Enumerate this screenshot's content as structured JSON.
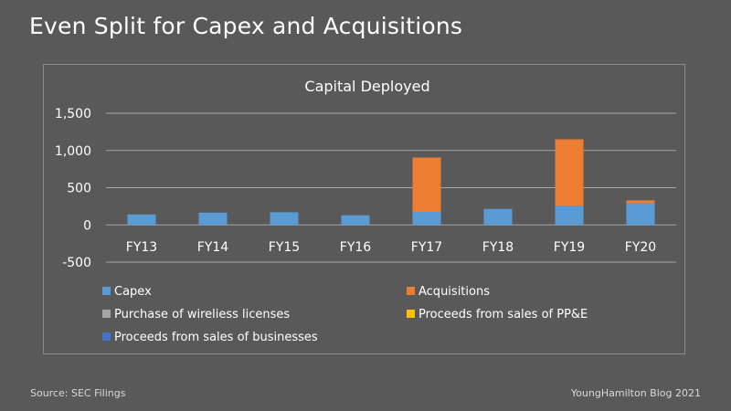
{
  "slide": {
    "title": "Even Split for Capex and Acquisitions",
    "source": "Source: SEC Filings",
    "credit": "YoungHamilton Blog 2021"
  },
  "colors": {
    "background": "#595959",
    "gridline": "#a6a6a6",
    "capex": "#5b9bd5",
    "acquisitions": "#ed7d31",
    "wireless": "#a5a5a5",
    "ppe": "#ffc000",
    "businesses": "#4472c4"
  },
  "chart_data": {
    "type": "bar",
    "stacked": true,
    "title": "Capital Deployed",
    "xlabel": "",
    "ylabel": "",
    "categories": [
      "FY13",
      "FY14",
      "FY15",
      "FY16",
      "FY17",
      "FY18",
      "FY19",
      "FY20"
    ],
    "ylim": [
      -500,
      1500
    ],
    "yticks": [
      -500,
      0,
      500,
      1000,
      1500
    ],
    "ytick_labels": [
      "-500",
      "0",
      "500",
      "1,000",
      "1,500"
    ],
    "grid": true,
    "legend_position": "bottom",
    "series": [
      {
        "name": "Capex",
        "color": "#5b9bd5",
        "values": [
          140,
          165,
          170,
          130,
          175,
          215,
          260,
          290
        ]
      },
      {
        "name": "Acquisitions",
        "color": "#ed7d31",
        "values": [
          0,
          0,
          0,
          0,
          730,
          0,
          890,
          40
        ]
      },
      {
        "name": "Purchase of wireliess licenses",
        "color": "#a5a5a5",
        "values": [
          0,
          0,
          0,
          0,
          0,
          0,
          0,
          0
        ]
      },
      {
        "name": "Proceeds from sales of PP&E",
        "color": "#ffc000",
        "values": [
          0,
          0,
          0,
          0,
          0,
          0,
          0,
          0
        ]
      },
      {
        "name": "Proceeds from sales of businesses",
        "color": "#4472c4",
        "values": [
          0,
          0,
          0,
          0,
          0,
          0,
          0,
          0
        ]
      }
    ]
  }
}
